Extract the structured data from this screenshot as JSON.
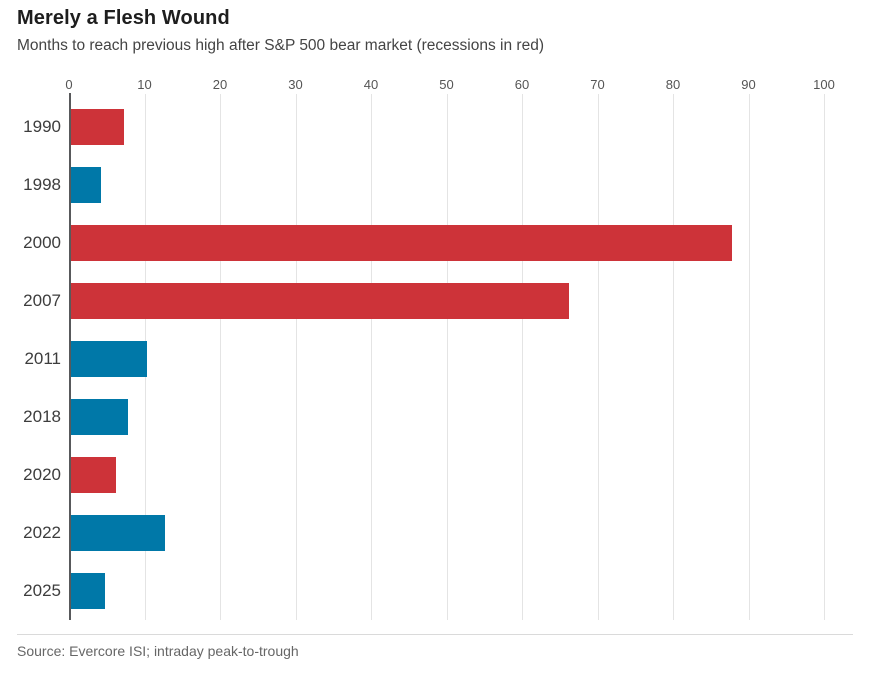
{
  "chart_data": {
    "type": "bar",
    "orientation": "horizontal",
    "title": "Merely a Flesh Wound",
    "subtitle": "Months to reach previous high after S&P 500 bear market (recessions in red)",
    "categories": [
      "1990",
      "1998",
      "2000",
      "2007",
      "2011",
      "2018",
      "2020",
      "2022",
      "2025"
    ],
    "values": [
      7,
      4,
      87.5,
      66,
      10,
      7.5,
      6,
      12.5,
      4.5
    ],
    "recession": [
      true,
      false,
      true,
      true,
      false,
      false,
      true,
      false,
      false
    ],
    "xlim": [
      0,
      100
    ],
    "xticks": [
      0,
      10,
      20,
      30,
      40,
      50,
      60,
      70,
      80,
      90,
      100
    ],
    "grid": "vertical",
    "legend": "none",
    "colors": {
      "recession_red": "#cd3339",
      "non_recession_blue": "#0078a8",
      "gridline": "#e4e4e4",
      "axis_line": "#58595b"
    },
    "source": "Source: Evercore ISI; intraday peak-to-trough"
  }
}
